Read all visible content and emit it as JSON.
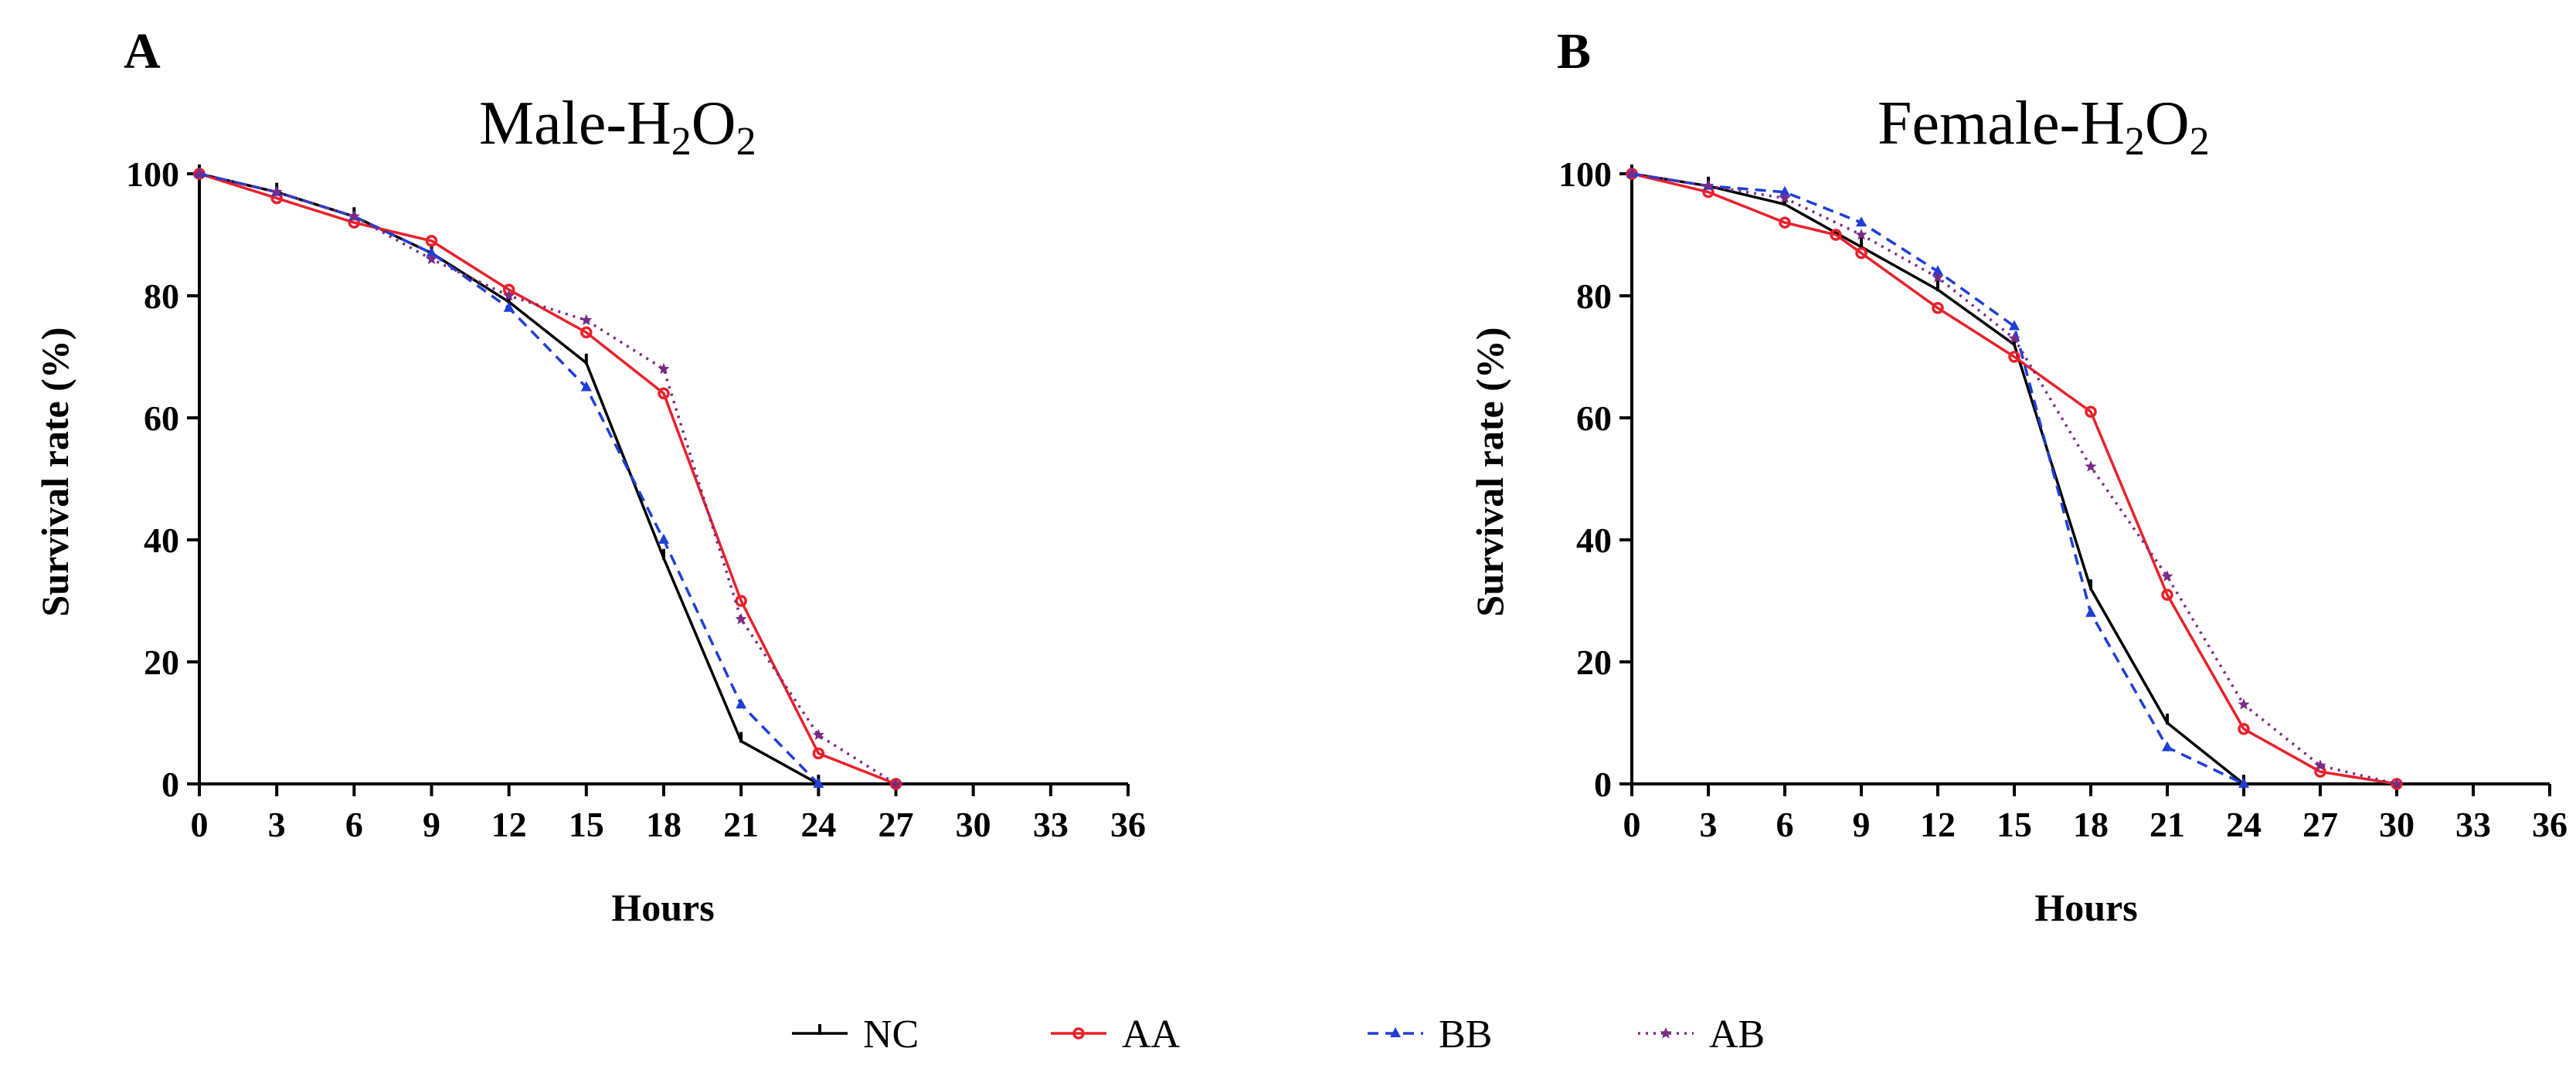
{
  "chart_data": [
    {
      "panel": "A",
      "type": "line",
      "title": {
        "base": "Male-H",
        "sub1": "2",
        "mid": "O",
        "sub2": "2"
      },
      "xlabel": "Hours",
      "ylabel": "Survival rate (%)",
      "xlim": [
        0,
        36
      ],
      "ylim": [
        0,
        100
      ],
      "xticks": [
        "0",
        "3",
        "6",
        "9",
        "12",
        "15",
        "18",
        "21",
        "24",
        "27",
        "30",
        "33",
        "36"
      ],
      "yticks": [
        "0",
        "20",
        "40",
        "60",
        "80",
        "100"
      ],
      "series": [
        {
          "name": "NC",
          "x": [
            0,
            3,
            6,
            9,
            12,
            15,
            18,
            21,
            24
          ],
          "y": [
            100,
            97,
            93,
            87,
            79,
            69,
            37,
            7,
            0
          ]
        },
        {
          "name": "AA",
          "x": [
            0,
            3,
            6,
            9,
            12,
            15,
            18,
            21,
            24,
            27
          ],
          "y": [
            100,
            96,
            92,
            89,
            81,
            74,
            64,
            30,
            5,
            0
          ]
        },
        {
          "name": "BB",
          "x": [
            0,
            3,
            6,
            9,
            12,
            15,
            18,
            21,
            24
          ],
          "y": [
            100,
            97,
            93,
            87,
            78,
            65,
            40,
            13,
            0
          ]
        },
        {
          "name": "AB",
          "x": [
            0,
            3,
            6,
            9,
            12,
            15,
            18,
            21,
            24,
            27
          ],
          "y": [
            100,
            97,
            93,
            86,
            80,
            76,
            68,
            27,
            8,
            0
          ]
        }
      ]
    },
    {
      "panel": "B",
      "type": "line",
      "title": {
        "base": "Female-H",
        "sub1": "2",
        "mid": "O",
        "sub2": "2"
      },
      "xlabel": "Hours",
      "ylabel": "Survival rate (%)",
      "xlim": [
        0,
        36
      ],
      "ylim": [
        0,
        100
      ],
      "xticks": [
        "0",
        "3",
        "6",
        "9",
        "12",
        "15",
        "18",
        "21",
        "24",
        "27",
        "30",
        "33",
        "36"
      ],
      "yticks": [
        "0",
        "20",
        "40",
        "60",
        "80",
        "100"
      ],
      "series": [
        {
          "name": "NC",
          "x": [
            0,
            3,
            6,
            9,
            12,
            15,
            18,
            21,
            24
          ],
          "y": [
            100,
            98,
            95,
            88,
            81,
            72,
            32,
            10,
            0
          ]
        },
        {
          "name": "AA",
          "x": [
            0,
            3,
            6,
            8,
            9,
            12,
            15,
            18,
            21,
            24,
            27,
            30
          ],
          "y": [
            100,
            97,
            92,
            90,
            87,
            78,
            70,
            61,
            31,
            9,
            2,
            0
          ]
        },
        {
          "name": "BB",
          "x": [
            0,
            3,
            6,
            9,
            12,
            15,
            18,
            21,
            24
          ],
          "y": [
            100,
            98,
            97,
            92,
            84,
            75,
            28,
            6,
            0
          ]
        },
        {
          "name": "AB",
          "x": [
            0,
            3,
            6,
            9,
            12,
            15,
            18,
            21,
            24,
            27,
            30
          ],
          "y": [
            100,
            98,
            96,
            90,
            83,
            73,
            52,
            34,
            13,
            3,
            0
          ]
        }
      ]
    }
  ],
  "legend": [
    {
      "name": "NC",
      "color": "#000000",
      "dash": "solid",
      "marker": "tick"
    },
    {
      "name": "AA",
      "color": "#e8212b",
      "dash": "solid",
      "marker": "circle"
    },
    {
      "name": "BB",
      "color": "#1f3fd6",
      "dash": "dashed",
      "marker": "triangle"
    },
    {
      "name": "AB",
      "color": "#7b2a86",
      "dash": "dotted",
      "marker": "star"
    }
  ]
}
